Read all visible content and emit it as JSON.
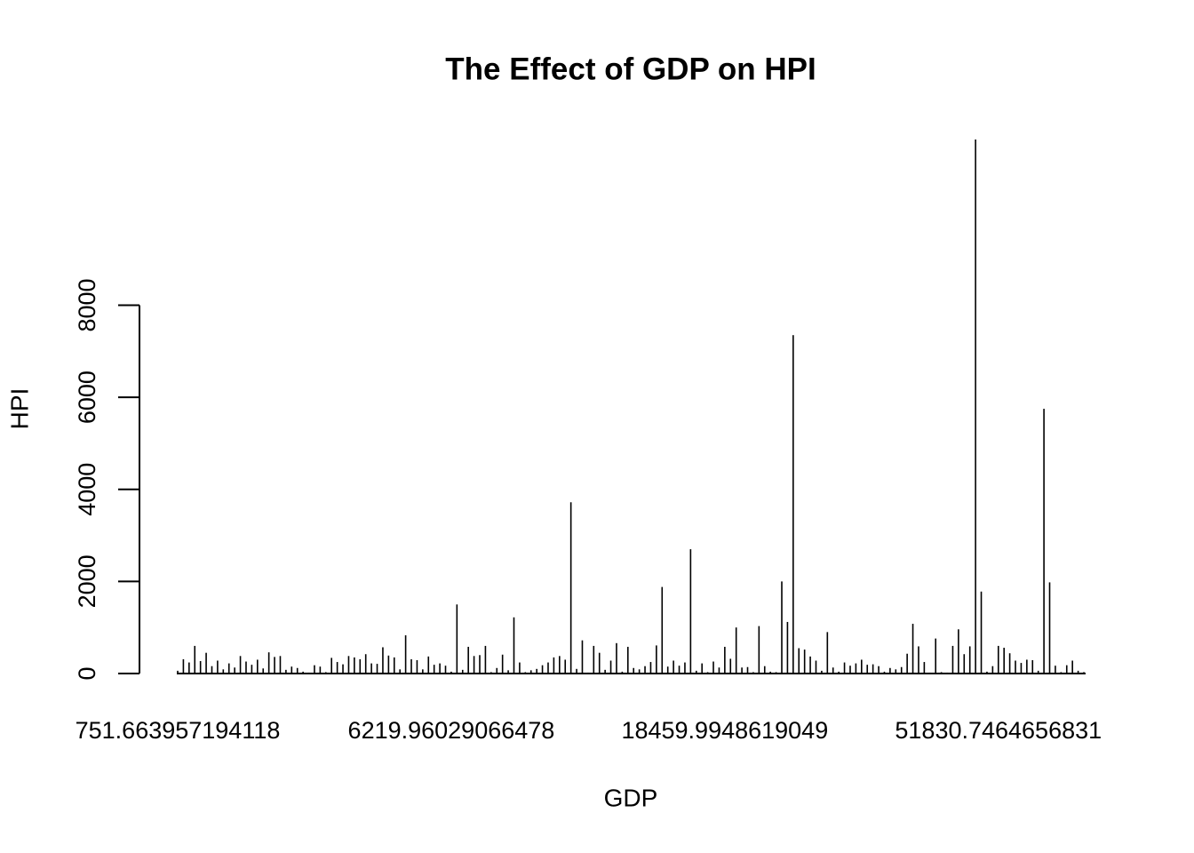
{
  "chart_data": {
    "type": "bar",
    "title": "The Effect of GDP on HPI",
    "x_label": "GDP",
    "y_label": "HPI",
    "color": "#000000",
    "categories": [
      "751.663957194118",
      null,
      null,
      null,
      null,
      null,
      null,
      null,
      null,
      null,
      null,
      null,
      null,
      null,
      null,
      null,
      null,
      null,
      null,
      null,
      null,
      null,
      null,
      null,
      null,
      null,
      null,
      null,
      null,
      null,
      null,
      null,
      null,
      null,
      null,
      null,
      null,
      null,
      null,
      null,
      null,
      null,
      null,
      null,
      null,
      null,
      null,
      null,
      "6219.96029066478",
      null,
      null,
      null,
      null,
      null,
      null,
      null,
      null,
      null,
      null,
      null,
      null,
      null,
      null,
      null,
      null,
      null,
      null,
      null,
      null,
      null,
      null,
      null,
      null,
      null,
      null,
      null,
      null,
      null,
      null,
      null,
      null,
      null,
      null,
      null,
      null,
      null,
      null,
      null,
      null,
      null,
      null,
      null,
      null,
      null,
      null,
      null,
      "18459.9948619049",
      null,
      null,
      null,
      null,
      null,
      null,
      null,
      null,
      null,
      null,
      null,
      null,
      null,
      null,
      null,
      null,
      null,
      null,
      null,
      null,
      null,
      null,
      null,
      null,
      null,
      null,
      null,
      null,
      null,
      null,
      null,
      null,
      null,
      null,
      null,
      null,
      null,
      null,
      null,
      null,
      null,
      null,
      null,
      null,
      null,
      null,
      null,
      "51830.7464656831",
      null,
      null,
      null,
      null,
      null,
      null,
      null,
      null,
      null,
      null,
      null,
      null,
      null,
      null,
      null
    ],
    "values": [
      60,
      310,
      240,
      600,
      270,
      450,
      160,
      280,
      90,
      220,
      130,
      380,
      260,
      190,
      300,
      110,
      460,
      360,
      380,
      80,
      150,
      120,
      40,
      20,
      180,
      150,
      30,
      340,
      250,
      200,
      380,
      350,
      310,
      420,
      220,
      210,
      570,
      390,
      350,
      90,
      830,
      310,
      290,
      90,
      370,
      190,
      220,
      170,
      40,
      1500,
      80,
      580,
      380,
      400,
      600,
      30,
      120,
      410,
      70,
      1220,
      240,
      30,
      70,
      100,
      180,
      240,
      350,
      380,
      300,
      3720,
      100,
      720,
      20,
      600,
      450,
      80,
      280,
      660,
      40,
      580,
      120,
      90,
      160,
      250,
      610,
      1880,
      150,
      280,
      170,
      240,
      2700,
      60,
      220,
      30,
      260,
      130,
      580,
      320,
      1000,
      130,
      140,
      30,
      1030,
      160,
      40,
      30,
      2000,
      1120,
      7350,
      550,
      520,
      370,
      280,
      60,
      900,
      130,
      40,
      240,
      170,
      220,
      300,
      190,
      200,
      160,
      40,
      120,
      90,
      140,
      430,
      1080,
      590,
      250,
      20,
      760,
      30,
      20,
      600,
      960,
      420,
      590,
      11600,
      1780,
      40,
      160,
      600,
      560,
      440,
      280,
      230,
      300,
      290,
      60,
      5750,
      1980,
      170,
      30,
      180,
      280,
      60,
      30
    ],
    "ylim": [
      0,
      11600
    ],
    "yticks": [
      0,
      2000,
      4000,
      6000,
      8000
    ]
  }
}
